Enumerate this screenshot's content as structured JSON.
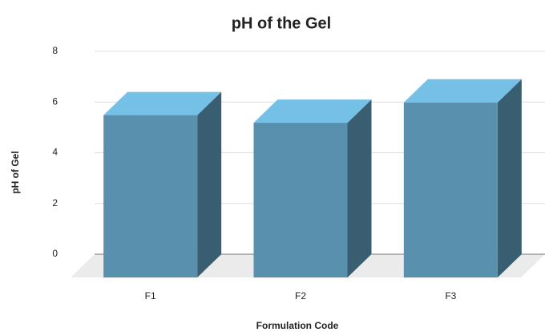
{
  "chart_data": {
    "type": "bar3d",
    "title": "pH of the Gel",
    "x_label": "Formulation Code",
    "y_label": "pH of Gel",
    "categories": [
      "F1",
      "F2",
      "F3"
    ],
    "values": [
      6.4,
      6.1,
      6.9
    ],
    "color": "#5890ae",
    "ylim": [
      0,
      8
    ],
    "yticks": [
      0,
      2,
      4,
      6,
      8
    ],
    "grid": true
  }
}
